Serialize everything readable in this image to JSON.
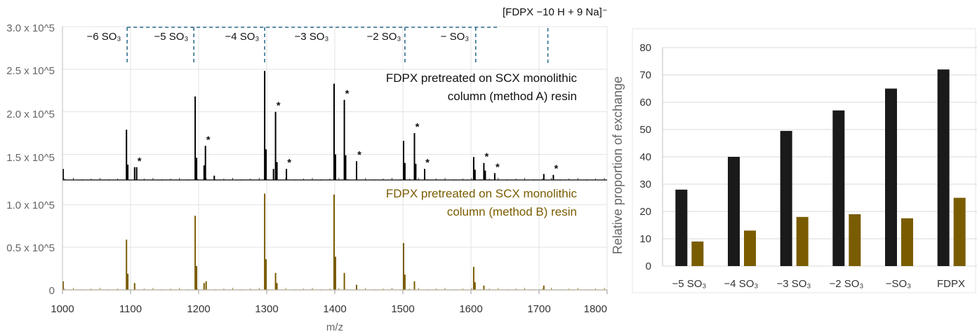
{
  "chart_data": [
    {
      "type": "line",
      "subtype": "mass-spectrum",
      "xlabel": "m/z",
      "xlim": [
        1000,
        1800
      ],
      "x_ticks": [
        "1000",
        "1100",
        "1200",
        "1300",
        "1400",
        "1500",
        "1600",
        "1700",
        "1800"
      ],
      "y_tick_labels": [
        "0",
        "0.5 x 10^5",
        "1.0 x 10^5",
        "1.5 x 10^5",
        "2.0 x 10^5",
        "2.5 x 10^5",
        "3.0 x 10^5"
      ],
      "annotation_top": "[FDPX −10 H + 9 Na]⁻",
      "bracket_labels": [
        "−6 SO₃",
        "−5 SO₃",
        "−4 SO₃",
        "−3 SO₃",
        "−2 SO₃",
        "− SO₃"
      ],
      "bracket_mz": [
        1095,
        1193,
        1297,
        1503,
        1607,
        1713
      ],
      "star_mark": "*",
      "series": [
        {
          "name": "FDPX pretreated on SCX monolithic column (method A) resin",
          "label_line1": "FDPX pretreated on SCX monolithic",
          "label_line2": "column (method A) resin",
          "color": "#000000",
          "ylim": [
            1.2,
            3.0
          ],
          "peaks": [
            {
              "mz": 1001,
              "y": 1.33
            },
            {
              "mz": 1094,
              "y": 1.79
            },
            {
              "mz": 1096,
              "y": 1.38
            },
            {
              "mz": 1106,
              "y": 1.35
            },
            {
              "mz": 1109,
              "y": 1.35,
              "star": true
            },
            {
              "mz": 1195,
              "y": 2.18
            },
            {
              "mz": 1197,
              "y": 1.46
            },
            {
              "mz": 1208,
              "y": 1.37
            },
            {
              "mz": 1210,
              "y": 1.6,
              "star": true
            },
            {
              "mz": 1223,
              "y": 1.25
            },
            {
              "mz": 1297,
              "y": 2.48
            },
            {
              "mz": 1299,
              "y": 1.56
            },
            {
              "mz": 1310,
              "y": 1.33
            },
            {
              "mz": 1313,
              "y": 2.0,
              "star": true
            },
            {
              "mz": 1315,
              "y": 1.41
            },
            {
              "mz": 1329,
              "y": 1.33,
              "star": true
            },
            {
              "mz": 1399,
              "y": 2.33
            },
            {
              "mz": 1401,
              "y": 1.5
            },
            {
              "mz": 1414,
              "y": 2.14,
              "star": true
            },
            {
              "mz": 1416,
              "y": 1.49
            },
            {
              "mz": 1432,
              "y": 1.42,
              "star": true
            },
            {
              "mz": 1501,
              "y": 1.66
            },
            {
              "mz": 1503,
              "y": 1.4
            },
            {
              "mz": 1517,
              "y": 1.75,
              "star": true
            },
            {
              "mz": 1519,
              "y": 1.39
            },
            {
              "mz": 1532,
              "y": 1.33,
              "star": true
            },
            {
              "mz": 1604,
              "y": 1.47
            },
            {
              "mz": 1606,
              "y": 1.32
            },
            {
              "mz": 1619,
              "y": 1.4,
              "star": true
            },
            {
              "mz": 1621,
              "y": 1.31
            },
            {
              "mz": 1635,
              "y": 1.28,
              "star": true
            },
            {
              "mz": 1707,
              "y": 1.27
            },
            {
              "mz": 1721,
              "y": 1.26,
              "star": true
            }
          ]
        },
        {
          "name": "FDPX pretreated on SCX monolithic column (method B) resin",
          "label_line1": "FDPX pretreated on SCX monolithic",
          "label_line2": "column (method B) resin",
          "color": "#7a5c00",
          "ylim": [
            0,
            1.2
          ],
          "peaks": [
            {
              "mz": 1001,
              "y": 0.1
            },
            {
              "mz": 1094,
              "y": 0.59
            },
            {
              "mz": 1096,
              "y": 0.19
            },
            {
              "mz": 1106,
              "y": 0.08
            },
            {
              "mz": 1195,
              "y": 0.87
            },
            {
              "mz": 1197,
              "y": 0.28
            },
            {
              "mz": 1208,
              "y": 0.08
            },
            {
              "mz": 1211,
              "y": 0.1
            },
            {
              "mz": 1297,
              "y": 1.13
            },
            {
              "mz": 1299,
              "y": 0.36
            },
            {
              "mz": 1313,
              "y": 0.2
            },
            {
              "mz": 1315,
              "y": 0.08
            },
            {
              "mz": 1399,
              "y": 1.12
            },
            {
              "mz": 1401,
              "y": 0.39
            },
            {
              "mz": 1414,
              "y": 0.2
            },
            {
              "mz": 1432,
              "y": 0.06
            },
            {
              "mz": 1501,
              "y": 0.55
            },
            {
              "mz": 1503,
              "y": 0.18
            },
            {
              "mz": 1517,
              "y": 0.1
            },
            {
              "mz": 1604,
              "y": 0.27
            },
            {
              "mz": 1606,
              "y": 0.09
            },
            {
              "mz": 1619,
              "y": 0.05
            },
            {
              "mz": 1707,
              "y": 0.05
            }
          ]
        }
      ]
    },
    {
      "type": "bar",
      "ylabel": "Relative proportion of exchange",
      "ylim": [
        0,
        80
      ],
      "y_ticks": [
        "0",
        "10",
        "20",
        "30",
        "40",
        "50",
        "60",
        "70",
        "80"
      ],
      "categories": [
        "−5 SO₃",
        "−4 SO₃",
        "−3 SO₃",
        "−2 SO₃",
        "−SO₃",
        "FDPX"
      ],
      "grid": "horizontal",
      "series": [
        {
          "color": "#1a1a1a",
          "values": [
            28,
            40,
            49.5,
            57,
            65,
            72
          ]
        },
        {
          "color": "#7a5c00",
          "values": [
            9,
            13,
            18,
            19,
            17.5,
            25
          ]
        }
      ]
    }
  ]
}
